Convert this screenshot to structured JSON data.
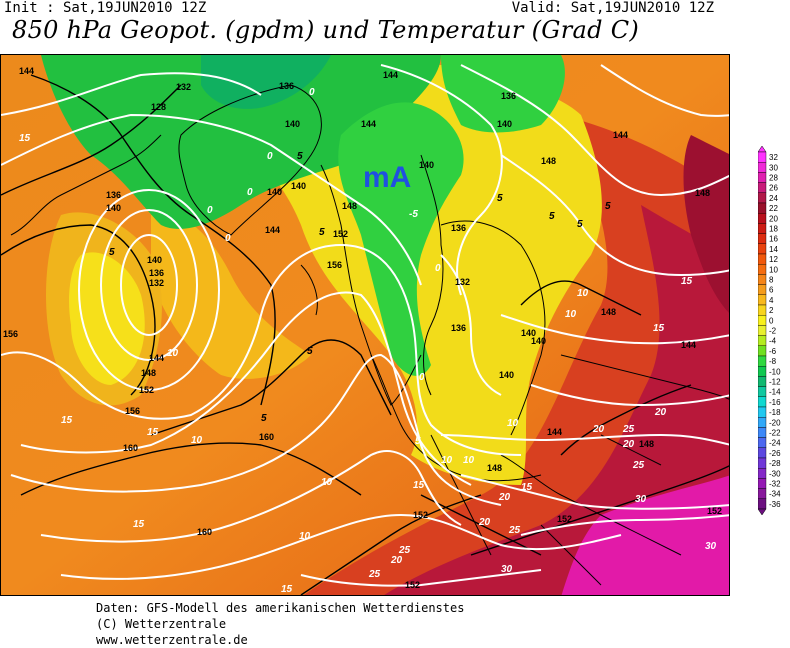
{
  "header": {
    "init": "Init : Sat,19JUN2010 12Z",
    "valid": "Valid: Sat,19JUN2010 12Z",
    "title": "850 hPa Geopot. (gpdm) und Temperatur (Grad C)"
  },
  "map": {
    "air_mass_label": "mA",
    "geopotential_labels": [
      "128",
      "132",
      "136",
      "140",
      "144",
      "148",
      "152",
      "156",
      "160"
    ],
    "temperature_labels": [
      "-5",
      "0",
      "5",
      "10",
      "15",
      "20",
      "25",
      "30"
    ]
  },
  "legend": {
    "values": [
      "32",
      "30",
      "28",
      "26",
      "24",
      "22",
      "20",
      "18",
      "16",
      "14",
      "12",
      "10",
      "8",
      "6",
      "4",
      "2",
      "0",
      "-2",
      "-4",
      "-6",
      "-8",
      "-10",
      "-12",
      "-14",
      "-16",
      "-18",
      "-20",
      "-22",
      "-24",
      "-26",
      "-28",
      "-30",
      "-32",
      "-34",
      "-36"
    ],
    "colors": [
      "#ff33ff",
      "#f02bd8",
      "#e021b0",
      "#c81c7a",
      "#b01848",
      "#98102a",
      "#b8101c",
      "#cc1c14",
      "#dc2c10",
      "#e8420e",
      "#f0580c",
      "#f46c10",
      "#f48418",
      "#f49c1c",
      "#f8b81c",
      "#f8d41c",
      "#f8f01c",
      "#e8f030",
      "#b4ec20",
      "#70e020",
      "#30d840",
      "#10c850",
      "#10b870",
      "#10c8a0",
      "#10d8d0",
      "#20c8f0",
      "#30a8f8",
      "#3c88f8",
      "#4c68f0",
      "#5c48e0",
      "#7038d8",
      "#8428c8",
      "#9418b4",
      "#88189c",
      "#6c1080"
    ]
  },
  "credits": {
    "line1": "Daten: GFS-Modell des amerikanischen Wetterdienstes",
    "line2": "(C) Wetterzentrale",
    "line3": "www.wetterzentrale.de"
  }
}
